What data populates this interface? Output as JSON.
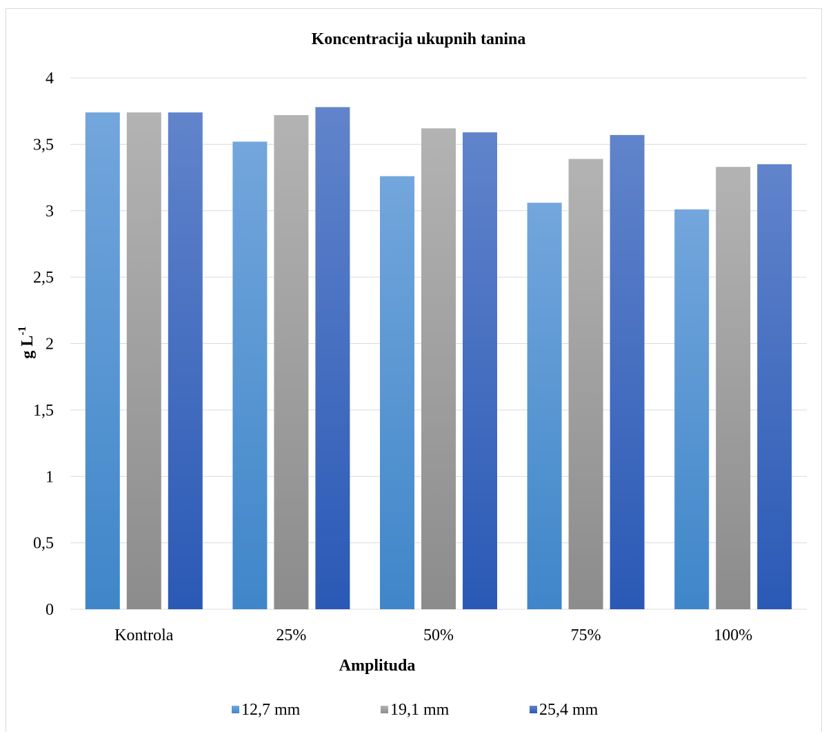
{
  "chart_data": {
    "type": "bar",
    "title": "Koncentracija ukupnih tanina",
    "xlabel": "Amplituda",
    "ylabel_main": "g L",
    "ylabel_sup": "-1",
    "categories": [
      "Kontrola",
      "25%",
      "50%",
      "75%",
      "100%"
    ],
    "series": [
      {
        "name": "12,7 mm",
        "values": [
          3.74,
          3.52,
          3.26,
          3.06,
          3.01
        ],
        "color_top": "#73a6dc",
        "color_bottom": "#3f86c9"
      },
      {
        "name": "19,1 mm",
        "values": [
          3.74,
          3.72,
          3.62,
          3.39,
          3.33
        ],
        "color_top": "#b3b3b3",
        "color_bottom": "#8c8c8c"
      },
      {
        "name": "25,4 mm",
        "values": [
          3.74,
          3.78,
          3.59,
          3.57,
          3.35
        ],
        "color_top": "#6184cb",
        "color_bottom": "#2a59b5"
      }
    ],
    "ylim": [
      0,
      4
    ],
    "yticks": [
      0,
      0.5,
      1,
      1.5,
      2,
      2.5,
      3,
      3.5,
      4
    ],
    "ytick_labels": [
      "0",
      "0,5",
      "1",
      "1,5",
      "2",
      "2,5",
      "3",
      "3,5",
      "4"
    ],
    "grid": true,
    "legend_position": "bottom",
    "gridline_color": "#d9d9d9"
  }
}
